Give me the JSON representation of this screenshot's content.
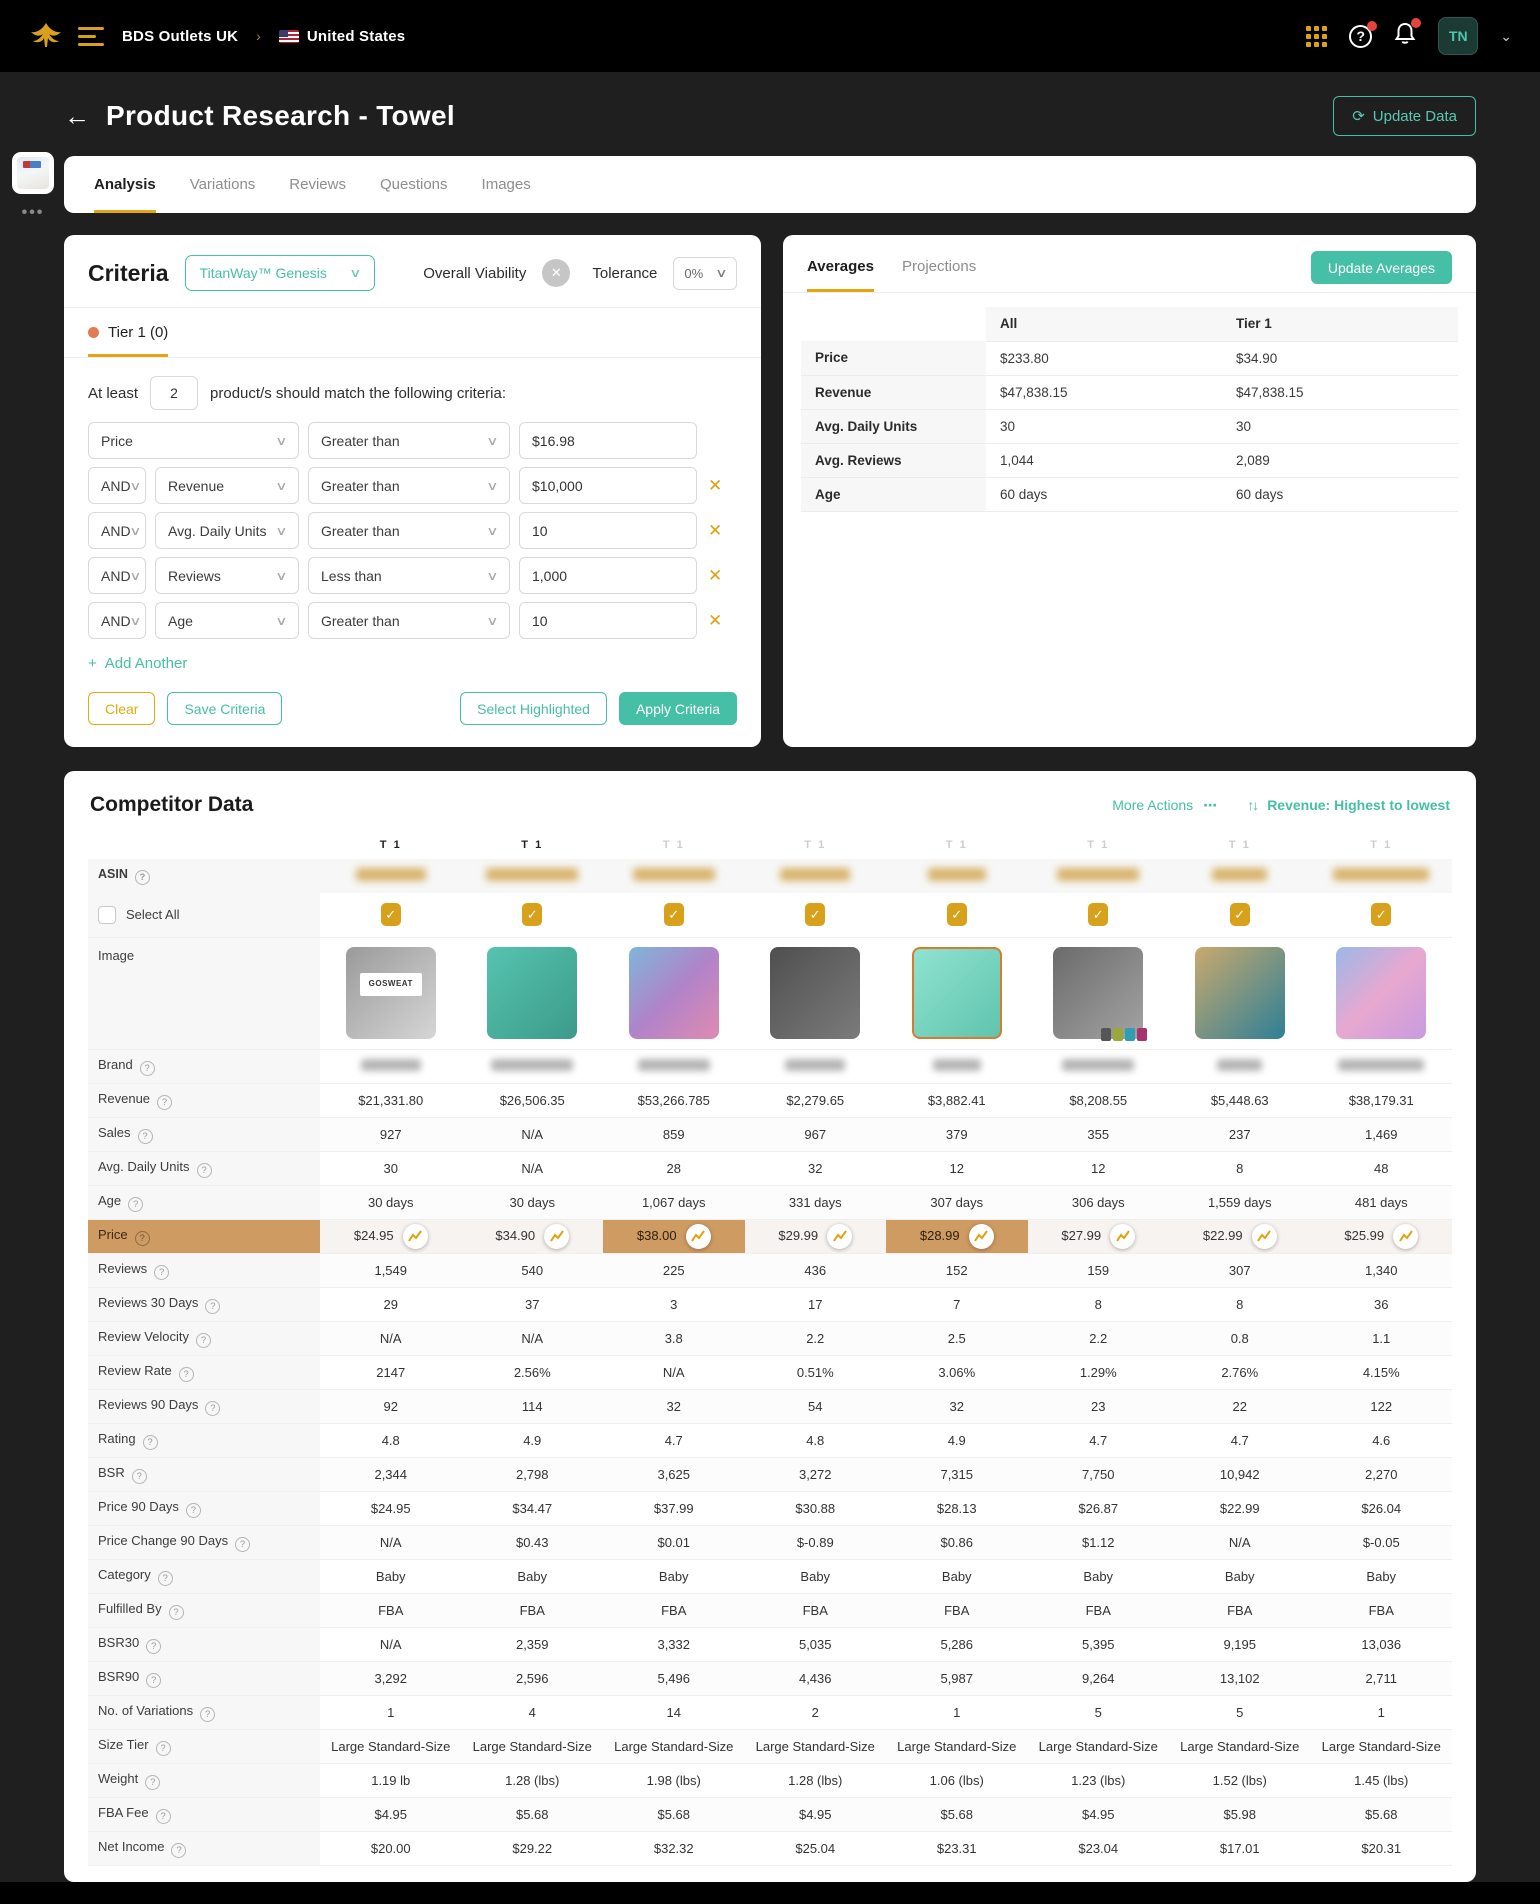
{
  "header": {
    "brand": "BDS Outlets UK",
    "region": "United States",
    "avatar": "TN"
  },
  "page": {
    "title": "Product Research - Towel",
    "update_button": "Update Data"
  },
  "tabs": {
    "items": [
      {
        "label": "Analysis",
        "active": true
      },
      {
        "label": "Variations",
        "active": false
      },
      {
        "label": "Reviews",
        "active": false
      },
      {
        "label": "Questions",
        "active": false
      },
      {
        "label": "Images",
        "active": false
      }
    ]
  },
  "criteria": {
    "title": "Criteria",
    "preset": "TitanWay™ Genesis",
    "overall_viability_label": "Overall Viability",
    "tolerance_label": "Tolerance",
    "tolerance_value": "0%",
    "tier_tab": "Tier 1 (0)",
    "at_least_prefix": "At least",
    "at_least_count": "2",
    "at_least_suffix": "product/s should match the following criteria:",
    "rows": [
      {
        "join": "",
        "field": "Price",
        "operator": "Greater than",
        "value": "$16.98",
        "removable": false
      },
      {
        "join": "AND",
        "field": "Revenue",
        "operator": "Greater than",
        "value": "$10,000",
        "removable": true
      },
      {
        "join": "AND",
        "field": "Avg. Daily Units",
        "operator": "Greater than",
        "value": "10",
        "removable": true
      },
      {
        "join": "AND",
        "field": "Reviews",
        "operator": "Less than",
        "value": "1,000",
        "removable": true
      },
      {
        "join": "AND",
        "field": "Age",
        "operator": "Greater than",
        "value": "10",
        "removable": true
      }
    ],
    "add_another": "Add Another",
    "buttons": {
      "clear": "Clear",
      "save": "Save Criteria",
      "select_highlighted": "Select Highlighted",
      "apply": "Apply Criteria"
    }
  },
  "averages": {
    "tabs": [
      {
        "label": "Averages",
        "active": true
      },
      {
        "label": "Projections",
        "active": false
      }
    ],
    "update_button": "Update Averages",
    "table": {
      "columns": [
        "All",
        "Tier 1"
      ],
      "rows": [
        {
          "label": "Price",
          "all": "$233.80",
          "tier1": "$34.90"
        },
        {
          "label": "Revenue",
          "all": "$47,838.15",
          "tier1": "$47,838.15"
        },
        {
          "label": "Avg. Daily Units",
          "all": "30",
          "tier1": "30"
        },
        {
          "label": "Avg. Reviews",
          "all": "1,044",
          "tier1": "2,089"
        },
        {
          "label": "Age",
          "all": "60 days",
          "tier1": "60 days"
        }
      ]
    }
  },
  "competitor": {
    "title": "Competitor Data",
    "more_actions": "More Actions",
    "sort_label": "Revenue: Highest to lowest",
    "tier_labels": [
      "T 1",
      "T 1",
      "T 1",
      "T 1",
      "T 1",
      "T 1",
      "T 1",
      "T 1"
    ],
    "tier_active_count": 2,
    "asin_label": "ASIN",
    "asin_blurred": true,
    "select_all_label": "Select All",
    "columns_checked": [
      true,
      true,
      true,
      true,
      true,
      true,
      true,
      true
    ],
    "image_label": "Image",
    "brand_label": "Brand",
    "brand_blurred": true,
    "images": [
      {
        "name": "gray-towel-gosweat",
        "colors": [
          "#9a9a9a",
          "#d6d6d6"
        ],
        "label": "GOSWEAT"
      },
      {
        "name": "teal-rolled-towel",
        "colors": [
          "#55c4b0",
          "#3d9a8a"
        ]
      },
      {
        "name": "tie-dye-towel",
        "colors": [
          "#7fb6d9",
          "#b083c9",
          "#e08bb0"
        ]
      },
      {
        "name": "dark-gray-towel",
        "colors": [
          "#4f4f4f",
          "#7b7b7b"
        ]
      },
      {
        "name": "mint-towel-orange-trim",
        "colors": [
          "#8fe3d0",
          "#5fc4ae"
        ]
      },
      {
        "name": "gray-roll-label-swatches",
        "colors": [
          "#6b6b6b",
          "#a3a3a3"
        ],
        "swatches": [
          "#555555",
          "#9aa83a",
          "#2e9fb0",
          "#a8326e"
        ]
      },
      {
        "name": "yoga-jaci-teal-rolls",
        "colors": [
          "#c9a96e",
          "#2e7f96"
        ]
      },
      {
        "name": "pink-blue-tiedye-roll",
        "colors": [
          "#9bb8e8",
          "#e8a8d0",
          "#c79be0"
        ]
      }
    ],
    "price_highlight_cells": [
      2,
      4
    ],
    "metrics": [
      {
        "label": "Revenue",
        "values": [
          "$21,331.80",
          "$26,506.35",
          "$53,266.785",
          "$2,279.65",
          "$3,882.41",
          "$8,208.55",
          "$5,448.63",
          "$38,179.31"
        ]
      },
      {
        "label": "Sales",
        "values": [
          "927",
          "N/A",
          "859",
          "967",
          "379",
          "355",
          "237",
          "1,469"
        ]
      },
      {
        "label": "Avg. Daily Units",
        "values": [
          "30",
          "N/A",
          "28",
          "32",
          "12",
          "12",
          "8",
          "48"
        ]
      },
      {
        "label": "Age",
        "values": [
          "30 days",
          "30 days",
          "1,067 days",
          "331 days",
          "307 days",
          "306 days",
          "1,559 days",
          "481 days"
        ]
      },
      {
        "label": "Price",
        "price_row": true,
        "values": [
          "$24.95",
          "$34.90",
          "$38.00",
          "$29.99",
          "$28.99",
          "$27.99",
          "$22.99",
          "$25.99"
        ]
      },
      {
        "label": "Reviews",
        "values": [
          "1,549",
          "540",
          "225",
          "436",
          "152",
          "159",
          "307",
          "1,340"
        ]
      },
      {
        "label": "Reviews 30 Days",
        "values": [
          "29",
          "37",
          "3",
          "17",
          "7",
          "8",
          "8",
          "36"
        ]
      },
      {
        "label": "Review Velocity",
        "values": [
          "N/A",
          "N/A",
          "3.8",
          "2.2",
          "2.5",
          "2.2",
          "0.8",
          "1.1"
        ]
      },
      {
        "label": "Review Rate",
        "values": [
          "2147",
          "2.56%",
          "N/A",
          "0.51%",
          "3.06%",
          "1.29%",
          "2.76%",
          "4.15%"
        ]
      },
      {
        "label": "Reviews 90 Days",
        "values": [
          "92",
          "114",
          "32",
          "54",
          "32",
          "23",
          "22",
          "122"
        ]
      },
      {
        "label": "Rating",
        "values": [
          "4.8",
          "4.9",
          "4.7",
          "4.8",
          "4.9",
          "4.7",
          "4.7",
          "4.6"
        ]
      },
      {
        "label": "BSR",
        "values": [
          "2,344",
          "2,798",
          "3,625",
          "3,272",
          "7,315",
          "7,750",
          "10,942",
          "2,270"
        ]
      },
      {
        "label": "Price 90 Days",
        "values": [
          "$24.95",
          "$34.47",
          "$37.99",
          "$30.88",
          "$28.13",
          "$26.87",
          "$22.99",
          "$26.04"
        ]
      },
      {
        "label": "Price Change 90 Days",
        "values": [
          "N/A",
          "$0.43",
          "$0.01",
          "$-0.89",
          "$0.86",
          "$1.12",
          "N/A",
          "$-0.05"
        ]
      },
      {
        "label": "Category",
        "values": [
          "Baby",
          "Baby",
          "Baby",
          "Baby",
          "Baby",
          "Baby",
          "Baby",
          "Baby"
        ]
      },
      {
        "label": "Fulfilled By",
        "values": [
          "FBA",
          "FBA",
          "FBA",
          "FBA",
          "FBA",
          "FBA",
          "FBA",
          "FBA"
        ]
      },
      {
        "label": "BSR30",
        "values": [
          "N/A",
          "2,359",
          "3,332",
          "5,035",
          "5,286",
          "5,395",
          "9,195",
          "13,036"
        ]
      },
      {
        "label": "BSR90",
        "values": [
          "3,292",
          "2,596",
          "5,496",
          "4,436",
          "5,987",
          "9,264",
          "13,102",
          "2,711"
        ]
      },
      {
        "label": "No. of Variations",
        "values": [
          "1",
          "4",
          "14",
          "2",
          "1",
          "5",
          "5",
          "1"
        ]
      },
      {
        "label": "Size Tier",
        "values": [
          "Large Standard-Size",
          "Large Standard-Size",
          "Large Standard-Size",
          "Large Standard-Size",
          "Large Standard-Size",
          "Large Standard-Size",
          "Large Standard-Size",
          "Large Standard-Size"
        ]
      },
      {
        "label": "Weight",
        "values": [
          "1.19 lb",
          "1.28 (lbs)",
          "1.98 (lbs)",
          "1.28 (lbs)",
          "1.06 (lbs)",
          "1.23 (lbs)",
          "1.52 (lbs)",
          "1.45 (lbs)"
        ]
      },
      {
        "label": "FBA Fee",
        "values": [
          "$4.95",
          "$5.68",
          "$5.68",
          "$4.95",
          "$5.68",
          "$4.95",
          "$5.98",
          "$5.68"
        ]
      },
      {
        "label": "Net Income",
        "values": [
          "$20.00",
          "$29.22",
          "$32.32",
          "$25.04",
          "$23.31",
          "$23.04",
          "$17.01",
          "$20.31"
        ]
      }
    ]
  },
  "colors": {
    "accent_teal": "#45bfa5",
    "accent_gold": "#dda210",
    "highlight_tan": "#ce9b62",
    "badge_red": "#e5443c"
  }
}
